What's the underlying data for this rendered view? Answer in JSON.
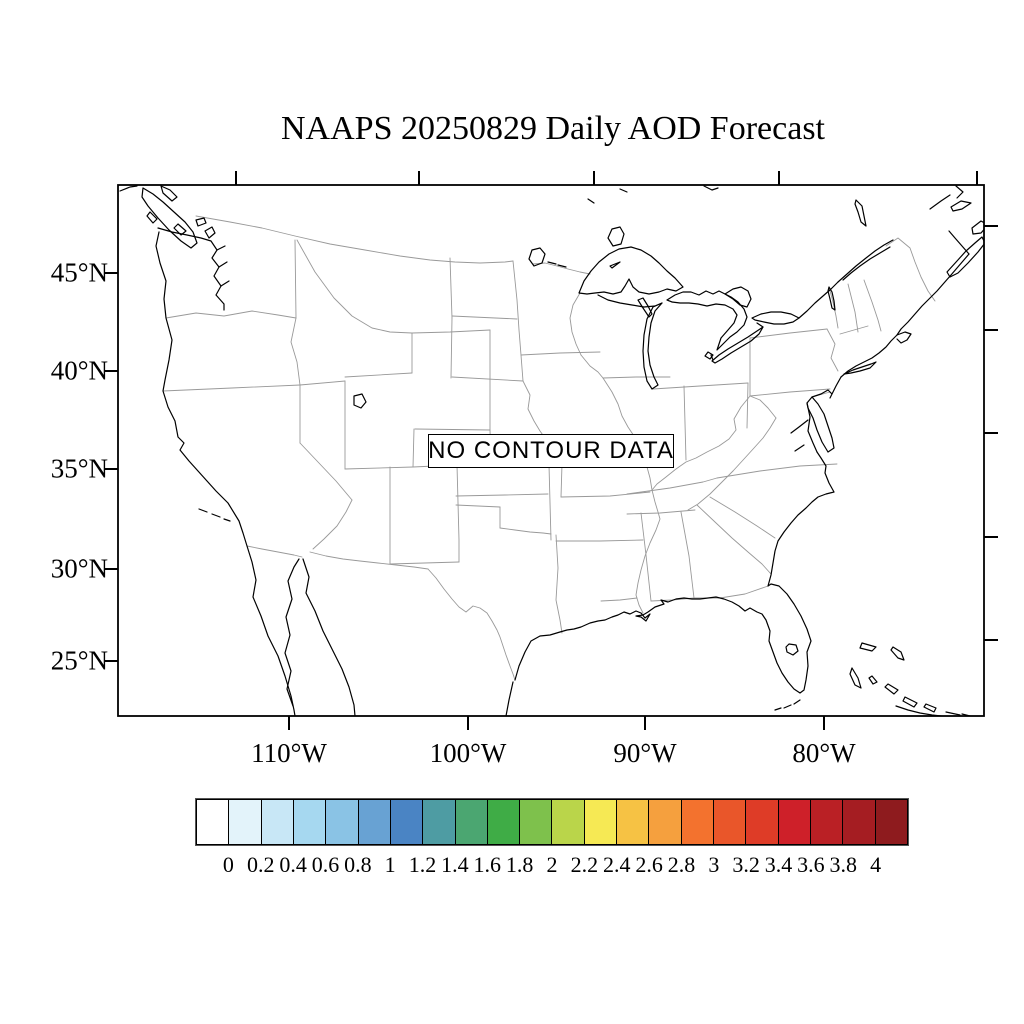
{
  "title": "NAAPS 20250829 Daily AOD Forecast",
  "map": {
    "no_data_label": "NO CONTOUR DATA"
  },
  "axes": {
    "left_labels": [
      "45°N",
      "40°N",
      "35°N",
      "30°N",
      "25°N"
    ],
    "bottom_labels": [
      "110°W",
      "100°W",
      "90°W",
      "80°W"
    ]
  },
  "colorbar": {
    "labels": [
      "0",
      "0.2",
      "0.4",
      "0.6",
      "0.8",
      "1",
      "1.2",
      "1.4",
      "1.6",
      "1.8",
      "2",
      "2.2",
      "2.4",
      "2.6",
      "2.8",
      "3",
      "3.2",
      "3.4",
      "3.6",
      "3.8",
      "4"
    ],
    "colors": [
      "#FFFFFF",
      "#E3F3FA",
      "#C8E7F6",
      "#A6D8F0",
      "#8AC3E5",
      "#68A2D3",
      "#4A84C4",
      "#4E9CA3",
      "#4BA671",
      "#3FAC46",
      "#7EC14C",
      "#BAD54A",
      "#F6E954",
      "#F6C244",
      "#F5A03E",
      "#F3722E",
      "#E9562A",
      "#DE3C27",
      "#CE2029",
      "#BA2025",
      "#A51D22",
      "#8E1B1E"
    ]
  },
  "chart_data": {
    "type": "map",
    "colorbar_scale": {
      "tick_values": [
        0,
        0.2,
        0.4,
        0.6,
        0.8,
        1,
        1.2,
        1.4,
        1.6,
        1.8,
        2,
        2.2,
        2.4,
        2.6,
        2.8,
        3,
        3.2,
        3.4,
        3.6,
        3.8,
        4
      ],
      "note_shown_on_map": "NO CONTOUR DATA"
    }
  }
}
